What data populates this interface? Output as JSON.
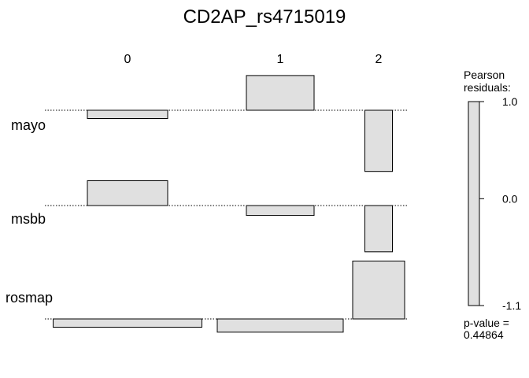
{
  "chart_data": {
    "type": "association",
    "title": "CD2AP_rs4715019",
    "columns": [
      "0",
      "1",
      "2"
    ],
    "rows": [
      "mayo",
      "msbb",
      "rosmap"
    ],
    "residuals": [
      [
        -0.25,
        1.05,
        -1.85
      ],
      [
        0.75,
        -0.3,
        -1.4
      ],
      [
        -0.25,
        -0.4,
        1.75
      ]
    ],
    "legend": {
      "title_line1": "Pearson",
      "title_line2": "residuals:",
      "ticks": [
        "1.0",
        "0.0",
        "-1.1"
      ],
      "tick_values": [
        1.0,
        0.0,
        -1.1
      ]
    },
    "pvalue_label": "p-value =",
    "pvalue": "0.44864",
    "colors": {
      "fill": "#e0e0e0",
      "stroke": "#000000"
    }
  }
}
